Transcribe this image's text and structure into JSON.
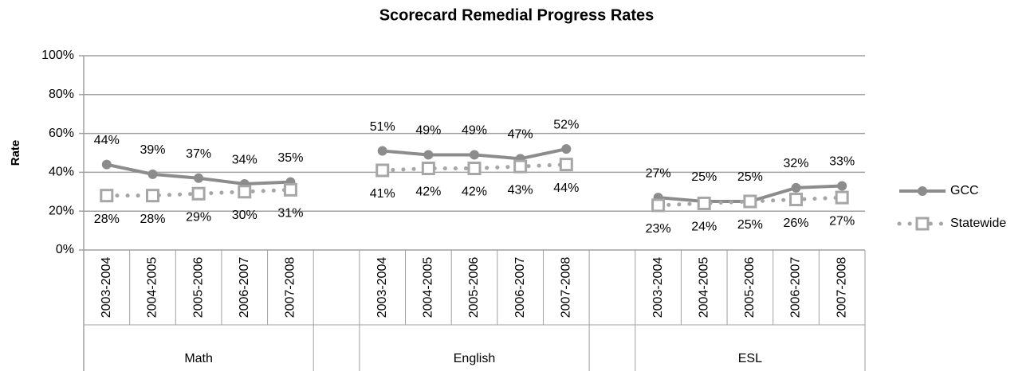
{
  "chart_data": {
    "type": "line",
    "title": "Scorecard Remedial Progress Rates",
    "y_label": "Rate",
    "categories": [
      "2003-2004",
      "2004-2005",
      "2005-2006",
      "2006-2007",
      "2007-2008",
      null,
      "2003-2004",
      "2004-2005",
      "2005-2006",
      "2006-2007",
      "2007-2008",
      null,
      "2003-2004",
      "2004-2005",
      "2005-2006",
      "2006-2007",
      "2007-2008"
    ],
    "groups": [
      "Math",
      "English",
      "ESL"
    ],
    "ylim": [
      0,
      100
    ],
    "yticks": [
      {
        "value": 0,
        "label": "0%"
      },
      {
        "value": 20,
        "label": "20%"
      },
      {
        "value": 40,
        "label": "40%"
      },
      {
        "value": 60,
        "label": "60%"
      },
      {
        "value": 80,
        "label": "80%"
      },
      {
        "value": 100,
        "label": "100%"
      }
    ],
    "grid": true,
    "legend": "right",
    "series": [
      {
        "name": "GCC",
        "color": "#8c8c8c",
        "style": "solid",
        "marker": "circle",
        "values": [
          44,
          39,
          37,
          34,
          35,
          null,
          51,
          49,
          49,
          47,
          52,
          null,
          27,
          25,
          25,
          32,
          33
        ],
        "value_labels": [
          "44%",
          "39%",
          "37%",
          "34%",
          "35%",
          null,
          "51%",
          "49%",
          "49%",
          "47%",
          "52%",
          null,
          "27%",
          "25%",
          "25%",
          "32%",
          "33%"
        ]
      },
      {
        "name": "Statewide",
        "color": "#a6a6a6",
        "style": "dotted",
        "marker": "square",
        "values": [
          28,
          28,
          29,
          30,
          31,
          null,
          41,
          42,
          42,
          43,
          44,
          null,
          23,
          24,
          25,
          26,
          27
        ],
        "value_labels": [
          "28%",
          "28%",
          "29%",
          "30%",
          "31%",
          null,
          "41%",
          "42%",
          "42%",
          "43%",
          "44%",
          null,
          "23%",
          "24%",
          "25%",
          "26%",
          "27%"
        ]
      }
    ]
  }
}
